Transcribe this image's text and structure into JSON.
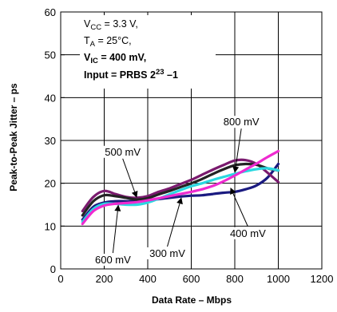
{
  "chart_data": {
    "type": "line",
    "xlabel": "Data Rate – Mbps",
    "ylabel": "Peak-to-Peak Jitter – ps",
    "xlim": [
      0,
      1200
    ],
    "ylim": [
      0,
      60
    ],
    "x_ticks": [
      "0",
      "200",
      "400",
      "600",
      "800",
      "1000",
      "1200"
    ],
    "y_ticks": [
      "0",
      "10",
      "20",
      "30",
      "40",
      "50",
      "60"
    ],
    "grid": true,
    "conditions": {
      "vcc_label": "V",
      "vcc_sub": "CC",
      "vcc_value": " = 3.3 V,",
      "ta_label": "T",
      "ta_sub": "A",
      "ta_value": " = 25°C,",
      "vic_label": "V",
      "vic_sub": "IC",
      "vic_value": " = 400 mV,",
      "input_label": "Input = PRBS 2",
      "input_sup": "23",
      "input_tail": " –1"
    },
    "series": [
      {
        "name": "300 mV",
        "color": "#1a1a80",
        "x": [
          100,
          150,
          200,
          250,
          300,
          350,
          400,
          450,
          500,
          550,
          600,
          650,
          700,
          750,
          800,
          850,
          900,
          950,
          1000
        ],
        "y": [
          11.5,
          14.5,
          15.5,
          15.8,
          15.8,
          15.8,
          16.0,
          16.3,
          16.6,
          16.9,
          17.1,
          17.2,
          17.5,
          17.8,
          18.0,
          18.6,
          19.5,
          21.3,
          24.5
        ]
      },
      {
        "name": "400 mV",
        "color": "#7a1a6e",
        "x": [
          100,
          150,
          200,
          250,
          300,
          350,
          400,
          450,
          500,
          550,
          600,
          650,
          700,
          750,
          800,
          850,
          900,
          950,
          1000
        ],
        "y": [
          13.5,
          16.8,
          18.2,
          17.5,
          16.8,
          16.6,
          17.0,
          18.0,
          18.8,
          19.8,
          20.8,
          22.0,
          23.2,
          24.3,
          25.3,
          25.4,
          24.5,
          22.5,
          20.3
        ]
      },
      {
        "name": "500 mV",
        "color": "#232323",
        "x": [
          100,
          150,
          200,
          250,
          300,
          350,
          400,
          450,
          500,
          550,
          600,
          650,
          700,
          750,
          800,
          850,
          900,
          950,
          1000
        ],
        "y": [
          12.5,
          15.8,
          17.2,
          17.0,
          16.6,
          16.2,
          16.5,
          17.4,
          18.2,
          19.1,
          20.0,
          21.0,
          22.2,
          23.3,
          24.2,
          24.5,
          24.3,
          23.5,
          23.0
        ]
      },
      {
        "name": "600 mV",
        "color": "#2ad8e0",
        "x": [
          100,
          150,
          200,
          250,
          300,
          350,
          400,
          450,
          500,
          550,
          600,
          650,
          700,
          750,
          800,
          850,
          900,
          950,
          1000
        ],
        "y": [
          11.0,
          14.0,
          15.2,
          15.2,
          15.0,
          15.0,
          15.5,
          16.4,
          17.4,
          18.4,
          19.3,
          20.0,
          20.8,
          21.5,
          22.2,
          22.8,
          23.3,
          23.5,
          23.0
        ]
      },
      {
        "name": "800 mV",
        "color": "#ef2ad0",
        "x": [
          100,
          150,
          200,
          250,
          300,
          350,
          400,
          450,
          500,
          550,
          600,
          650,
          700,
          750,
          800,
          850,
          900,
          950,
          1000
        ],
        "y": [
          10.5,
          13.5,
          14.8,
          15.2,
          15.4,
          15.6,
          16.0,
          16.5,
          17.0,
          17.5,
          18.0,
          18.6,
          19.4,
          20.5,
          21.8,
          23.2,
          24.6,
          26.1,
          27.5
        ]
      }
    ],
    "annotations": [
      {
        "label": "800 mV",
        "text_x": 830,
        "text_y": 33.5,
        "tip_x": 800,
        "tip_y": 22.4
      },
      {
        "label": "500 mV",
        "text_x": 285,
        "text_y": 26.5,
        "tip_x": 350,
        "tip_y": 16.6
      },
      {
        "label": "600 mV",
        "text_x": 240,
        "text_y": 1.3,
        "tip_x": 265,
        "tip_y": 15.0
      },
      {
        "label": "300 mV",
        "text_x": 490,
        "text_y": 2.8,
        "tip_x": 555,
        "tip_y": 16.7
      },
      {
        "label": "400 mV",
        "text_x": 860,
        "text_y": 7.5,
        "tip_x": 780,
        "tip_y": 19.0
      }
    ]
  }
}
